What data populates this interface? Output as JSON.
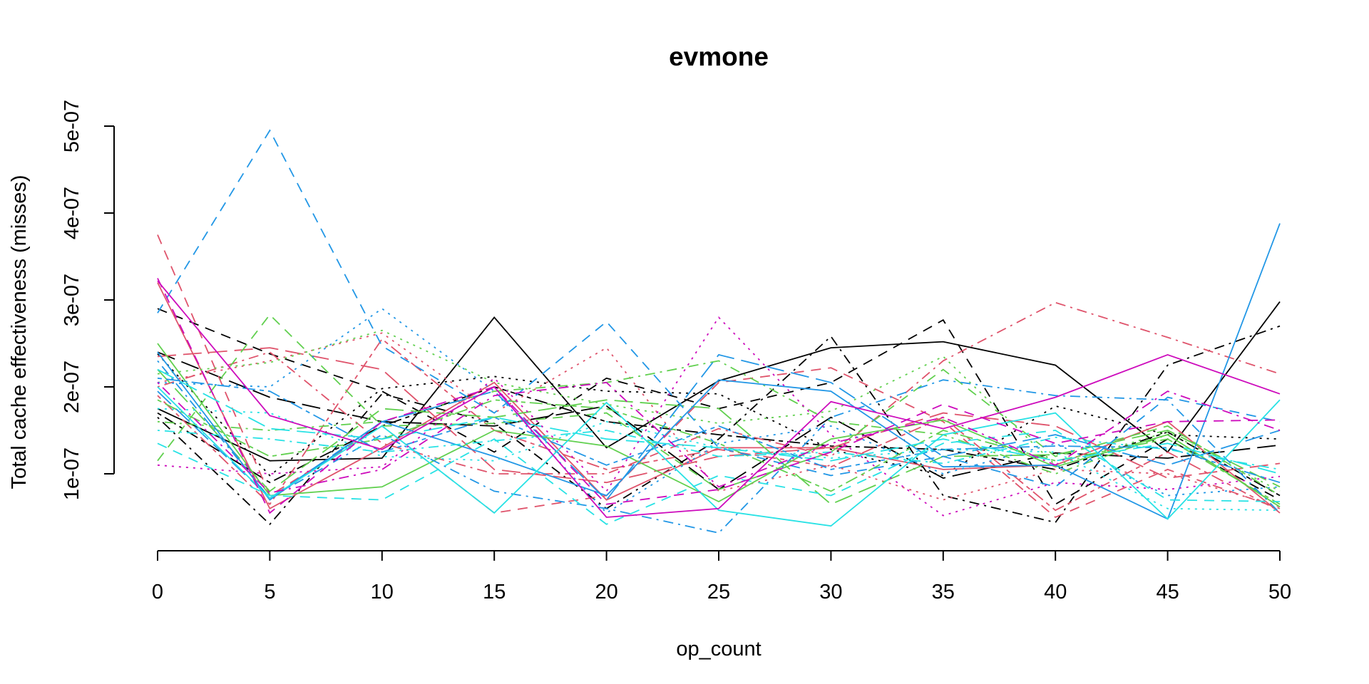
{
  "chart_data": {
    "type": "line",
    "title": "evmone",
    "xlabel": "op_count",
    "ylabel": "Total cache effectiveness (misses)",
    "x": [
      0,
      5,
      10,
      15,
      20,
      25,
      30,
      35,
      40,
      45,
      50
    ],
    "xticks": [
      0,
      5,
      10,
      15,
      20,
      25,
      30,
      35,
      40,
      45,
      50
    ],
    "xtick_labels": [
      "0",
      "5",
      "10",
      "15",
      "20",
      "25",
      "30",
      "35",
      "40",
      "45",
      "50"
    ],
    "yticks": [
      1e-07,
      2e-07,
      3e-07,
      4e-07,
      5e-07
    ],
    "ytick_labels": [
      "1e-07",
      "2e-07",
      "3e-07",
      "4e-07",
      "5e-07"
    ],
    "xlim": [
      0,
      50
    ],
    "ylim": [
      1e-07,
      5e-07
    ],
    "grid": false,
    "legend": "none",
    "series": [
      {
        "color": "#000000",
        "dash": "solid",
        "values": [
          1.75e-07,
          1.15e-07,
          1.18e-07,
          2.8e-07,
          1.3e-07,
          2.07e-07,
          2.45e-07,
          2.52e-07,
          2.25e-07,
          1.25e-07,
          2.98e-07
        ]
      },
      {
        "color": "#000000",
        "dash": "dashed",
        "values": [
          2.9e-07,
          2.38e-07,
          1.95e-07,
          1.25e-07,
          2.1e-07,
          1.75e-07,
          2.05e-07,
          2.77e-07,
          6.5e-08,
          1.4e-07,
          7e-08
        ]
      },
      {
        "color": "#000000",
        "dash": "dotted",
        "values": [
          2.38e-07,
          9.8e-08,
          1.98e-07,
          2.12e-07,
          1.95e-07,
          1.92e-07,
          1.28e-07,
          9.8e-08,
          1.78e-07,
          1.45e-07,
          1.4e-07
        ]
      },
      {
        "color": "#000000",
        "dash": "dotdash",
        "values": [
          1.65e-07,
          4.2e-08,
          1.92e-07,
          1.58e-07,
          6e-08,
          1.4e-07,
          2.58e-07,
          7.5e-08,
          4.4e-08,
          2.25e-07,
          2.7e-07
        ]
      },
      {
        "color": "#000000",
        "dash": "longdash",
        "values": [
          2.4e-07,
          1.88e-07,
          1.6e-07,
          1.55e-07,
          1.78e-07,
          8.2e-08,
          1.65e-07,
          9.5e-08,
          1.24e-07,
          1.18e-07,
          1.33e-07
        ]
      },
      {
        "color": "#000000",
        "dash": "twodash",
        "values": [
          1.7e-07,
          9e-08,
          1.55e-07,
          2e-07,
          1.6e-07,
          1.45e-07,
          1.32e-07,
          1.28e-07,
          1.05e-07,
          1.48e-07,
          7.5e-08
        ]
      },
      {
        "color": "#DF536B",
        "dash": "solid",
        "values": [
          3.2e-07,
          6e-08,
          1.3e-07,
          2.05e-07,
          7e-08,
          1.3e-07,
          1.3e-07,
          1.05e-07,
          1.1e-07,
          1.6e-07,
          5.5e-08
        ]
      },
      {
        "color": "#DF536B",
        "dash": "dashed",
        "values": [
          3.75e-07,
          7.5e-08,
          1.55e-07,
          5.5e-08,
          7.5e-08,
          2.05e-07,
          2.22e-07,
          1.6e-07,
          5e-08,
          1.05e-07,
          6e-08
        ]
      },
      {
        "color": "#DF536B",
        "dash": "dotted",
        "values": [
          2.05e-07,
          2.3e-07,
          2.62e-07,
          1.7e-07,
          2.45e-07,
          8e-08,
          1.1e-07,
          7e-08,
          1.05e-07,
          1e-07,
          6.2e-08
        ]
      },
      {
        "color": "#DF536B",
        "dash": "dotdash",
        "values": [
          2e-07,
          2.4e-07,
          1.35e-07,
          1e-07,
          1e-07,
          1.52e-07,
          1.2e-07,
          2.3e-07,
          2.97e-07,
          2.57e-07,
          2.15e-07
        ]
      },
      {
        "color": "#DF536B",
        "dash": "longdash",
        "values": [
          2.35e-07,
          2.45e-07,
          2.2e-07,
          1.05e-07,
          9e-08,
          1.2e-07,
          1.3e-07,
          1.7e-07,
          1.55e-07,
          9.5e-08,
          1.12e-07
        ]
      },
      {
        "color": "#DF536B",
        "dash": "twodash",
        "values": [
          1.9e-07,
          6.5e-08,
          2.55e-07,
          1.5e-07,
          1.05e-07,
          1.28e-07,
          1.08e-07,
          1.65e-07,
          5.8e-08,
          1.25e-07,
          5.7e-08
        ]
      },
      {
        "color": "#61D04F",
        "dash": "solid",
        "values": [
          2.5e-07,
          7.5e-08,
          8.5e-08,
          1.5e-07,
          1.32e-07,
          6.8e-08,
          1.4e-07,
          1.62e-07,
          1.08e-07,
          1.45e-07,
          6.2e-08
        ]
      },
      {
        "color": "#61D04F",
        "dash": "dashed",
        "values": [
          1.15e-07,
          2.83e-07,
          1.55e-07,
          1.58e-07,
          1.7e-07,
          8.2e-08,
          1.25e-07,
          2.2e-07,
          1.2e-07,
          1.55e-07,
          7.5e-08
        ]
      },
      {
        "color": "#61D04F",
        "dash": "dotted",
        "values": [
          2.15e-07,
          2.28e-07,
          2.65e-07,
          2.05e-07,
          1.8e-07,
          1.58e-07,
          1.72e-07,
          2.35e-07,
          1.1e-07,
          1.48e-07,
          8e-08
        ]
      },
      {
        "color": "#61D04F",
        "dash": "dotdash",
        "values": [
          1.6e-07,
          1.5e-07,
          1.6e-07,
          1.95e-07,
          2.05e-07,
          2.3e-07,
          1.6e-07,
          1.45e-07,
          1e-07,
          1.45e-07,
          6.2e-08
        ]
      },
      {
        "color": "#61D04F",
        "dash": "longdash",
        "values": [
          2.2e-07,
          8e-08,
          1.75e-07,
          1.65e-07,
          1.85e-07,
          1.75e-07,
          6.5e-08,
          1.2e-07,
          1.22e-07,
          1.5e-07,
          8.5e-08
        ]
      },
      {
        "color": "#61D04F",
        "dash": "twodash",
        "values": [
          1.85e-07,
          1.2e-07,
          1.4e-07,
          1.85e-07,
          1.75e-07,
          1.35e-07,
          8e-08,
          1.5e-07,
          1.15e-07,
          1.4e-07,
          6.5e-08
        ]
      },
      {
        "color": "#2297E6",
        "dash": "solid",
        "values": [
          2.4e-07,
          7e-08,
          1.6e-07,
          1.2e-07,
          7.5e-08,
          2.08e-07,
          1.95e-07,
          1.08e-07,
          1.1e-07,
          4.8e-08,
          3.88e-07
        ]
      },
      {
        "color": "#2297E6",
        "dash": "dashed",
        "values": [
          2.85e-07,
          4.95e-07,
          2.47e-07,
          1.7e-07,
          2.75e-07,
          1.3e-07,
          9.8e-08,
          1.2e-07,
          8.5e-08,
          1.88e-07,
          1.6e-07
        ]
      },
      {
        "color": "#2297E6",
        "dash": "dotted",
        "values": [
          2.05e-07,
          2e-07,
          2.9e-07,
          1.95e-07,
          5.5e-08,
          1.35e-07,
          1.55e-07,
          1e-07,
          1.35e-07,
          7.5e-08,
          8.5e-08
        ]
      },
      {
        "color": "#2297E6",
        "dash": "dotdash",
        "values": [
          2.3e-07,
          7.2e-08,
          1.45e-07,
          8e-08,
          6e-08,
          3.2e-08,
          1.65e-07,
          2.08e-07,
          1.9e-07,
          1.85e-07,
          5.5e-08
        ]
      },
      {
        "color": "#2297E6",
        "dash": "longdash",
        "values": [
          1.95e-07,
          7.2e-08,
          1.6e-07,
          1.95e-07,
          7e-08,
          2.37e-07,
          2.05e-07,
          1.2e-07,
          1.45e-07,
          1.1e-07,
          1.5e-07
        ]
      },
      {
        "color": "#2297E6",
        "dash": "twodash",
        "values": [
          2.1e-07,
          1.95e-07,
          1.25e-07,
          1.65e-07,
          1.1e-07,
          1.55e-07,
          1.05e-07,
          1.28e-07,
          1.32e-07,
          1.3e-07,
          9e-08
        ]
      },
      {
        "color": "#28E2E5",
        "dash": "solid",
        "values": [
          2e-07,
          7.2e-08,
          1.55e-07,
          5.5e-08,
          1.82e-07,
          5.8e-08,
          4e-08,
          1.45e-07,
          1.7e-07,
          4.8e-08,
          1.85e-07
        ]
      },
      {
        "color": "#28E2E5",
        "dash": "dashed",
        "values": [
          1.35e-07,
          7.5e-08,
          7e-08,
          1.4e-07,
          4.2e-08,
          9.8e-08,
          7.5e-08,
          1.35e-07,
          1.5e-07,
          7e-08,
          6.8e-08
        ]
      },
      {
        "color": "#28E2E5",
        "dash": "dotted",
        "values": [
          1.75e-07,
          1.7e-07,
          1.2e-07,
          1.15e-07,
          1.6e-07,
          1.3e-07,
          1.18e-07,
          1.28e-07,
          1.25e-07,
          6e-08,
          5.8e-08
        ]
      },
      {
        "color": "#28E2E5",
        "dash": "dotdash",
        "values": [
          1.5e-07,
          1.4e-07,
          1.25e-07,
          1.38e-07,
          1.5e-07,
          1.2e-07,
          1.25e-07,
          1.12e-07,
          1.42e-07,
          1.28e-07,
          1.05e-07
        ]
      },
      {
        "color": "#28E2E5",
        "dash": "longdash",
        "values": [
          2.2e-07,
          1.52e-07,
          1.4e-07,
          1.65e-07,
          1.4e-07,
          1.3e-07,
          1.15e-07,
          1.4e-07,
          1.15e-07,
          1.35e-07,
          1e-07
        ]
      },
      {
        "color": "#CD0BBC",
        "dash": "solid",
        "values": [
          3.22e-07,
          1.67e-07,
          1.28e-07,
          2e-07,
          5e-08,
          6e-08,
          1.83e-07,
          1.52e-07,
          1.88e-07,
          2.37e-07,
          1.92e-07
        ]
      },
      {
        "color": "#CD0BBC",
        "dash": "dashed",
        "values": [
          3.25e-07,
          5.5e-08,
          1.6e-07,
          2e-07,
          6.5e-08,
          8.2e-08,
          1.25e-07,
          1.8e-07,
          1.35e-07,
          1.6e-07,
          1.62e-07
        ]
      },
      {
        "color": "#CD0BBC",
        "dash": "dotted",
        "values": [
          1.1e-07,
          1e-07,
          1.08e-07,
          2.1e-07,
          8e-08,
          2.8e-07,
          1.45e-07,
          5.2e-08,
          9e-08,
          8.2e-08,
          9.7e-08
        ]
      },
      {
        "color": "#CD0BBC",
        "dash": "dotdash",
        "values": [
          2.05e-07,
          7.8e-08,
          1.05e-07,
          1.9e-07,
          2.05e-07,
          8.5e-08,
          1.35e-07,
          1.65e-07,
          1.1e-07,
          1.95e-07,
          1.5e-07
        ]
      }
    ]
  }
}
